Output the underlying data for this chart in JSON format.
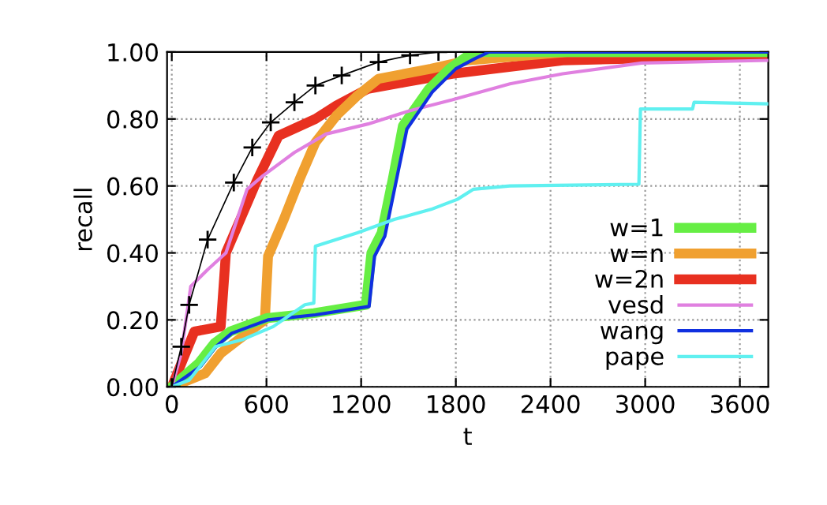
{
  "chart_data": {
    "type": "line",
    "xlabel": "t",
    "ylabel": "recall",
    "xlim": [
      -30,
      3780
    ],
    "ylim": [
      0,
      1
    ],
    "xticks": [
      0,
      600,
      1200,
      1800,
      2400,
      3000,
      3600
    ],
    "yticks": [
      {
        "value": 0,
        "label": "0.00"
      },
      {
        "value": 0.2,
        "label": "0.20"
      },
      {
        "value": 0.4,
        "label": "0.40"
      },
      {
        "value": 0.6,
        "label": "0.60"
      },
      {
        "value": 0.8,
        "label": "0.80"
      },
      {
        "value": 1,
        "label": "1.00"
      }
    ],
    "grid": true,
    "legend": "bottom right",
    "line_style": "solid",
    "series": [
      {
        "name": "w=1",
        "color": "#66ee44",
        "x": [
          0,
          170,
          270,
          370,
          600,
          900,
          1230,
          1265,
          1330,
          1400,
          1465,
          1630,
          1760,
          1880,
          1950,
          3780
        ],
        "values": [
          0,
          0.07,
          0.13,
          0.165,
          0.205,
          0.22,
          0.245,
          0.4,
          0.46,
          0.62,
          0.78,
          0.89,
          0.95,
          0.99,
          1.0,
          1.0
        ]
      },
      {
        "name": "w=n",
        "color": "#f0a030",
        "x": [
          0,
          210,
          310,
          420,
          590,
          610,
          710,
          810,
          910,
          1043,
          1177,
          1310,
          1643,
          1877,
          2500,
          3780
        ],
        "values": [
          0,
          0.04,
          0.1,
          0.14,
          0.2,
          0.39,
          0.5,
          0.62,
          0.73,
          0.81,
          0.87,
          0.92,
          0.95,
          0.975,
          1.0,
          1.0
        ]
      },
      {
        "name": "w=2n",
        "color": "#e83020",
        "x": [
          0,
          143,
          310,
          343,
          443,
          543,
          677,
          910,
          1043,
          1243,
          1477,
          1777,
          2477,
          3780
        ],
        "values": [
          0,
          0.165,
          0.18,
          0.4,
          0.51,
          0.62,
          0.75,
          0.8,
          0.84,
          0.89,
          0.91,
          0.935,
          0.975,
          0.99
        ]
      },
      {
        "name": "vesd",
        "color": "#e080e0",
        "x": [
          0,
          60,
          120,
          227,
          343,
          477,
          577,
          777,
          977,
          1243,
          1510,
          1777,
          2143,
          2477,
          2977,
          3780
        ],
        "values": [
          0,
          0.1,
          0.3,
          0.35,
          0.4,
          0.59,
          0.63,
          0.7,
          0.755,
          0.785,
          0.825,
          0.857,
          0.905,
          0.935,
          0.967,
          0.975
        ]
      },
      {
        "name": "wang",
        "color": "#1030e0",
        "x": [
          0,
          180,
          280,
          380,
          610,
          910,
          1250,
          1285,
          1350,
          1420,
          1490,
          1650,
          1800,
          1920,
          2010,
          3780
        ],
        "values": [
          0,
          0.06,
          0.12,
          0.16,
          0.2,
          0.215,
          0.24,
          0.39,
          0.45,
          0.61,
          0.77,
          0.88,
          0.95,
          0.98,
          1.0,
          1.0
        ]
      },
      {
        "name": "pape",
        "color": "#60f0f0",
        "x": [
          0,
          110,
          277,
          443,
          643,
          843,
          900,
          910,
          1177,
          1410,
          1643,
          1810,
          1910,
          2143,
          2960,
          2970,
          3300,
          3310,
          3780
        ],
        "values": [
          0,
          0.02,
          0.12,
          0.14,
          0.18,
          0.245,
          0.25,
          0.42,
          0.46,
          0.5,
          0.53,
          0.56,
          0.59,
          0.6,
          0.605,
          0.83,
          0.83,
          0.85,
          0.845
        ]
      },
      {
        "color": "#000000",
        "marker": "cross",
        "x": [
          0,
          60,
          110,
          227,
          393,
          510,
          627,
          777,
          910,
          1077,
          1310,
          1510,
          1690
        ],
        "values": [
          0,
          0.12,
          0.245,
          0.44,
          0.61,
          0.715,
          0.79,
          0.85,
          0.9,
          0.93,
          0.97,
          0.99,
          1.0
        ]
      }
    ]
  }
}
